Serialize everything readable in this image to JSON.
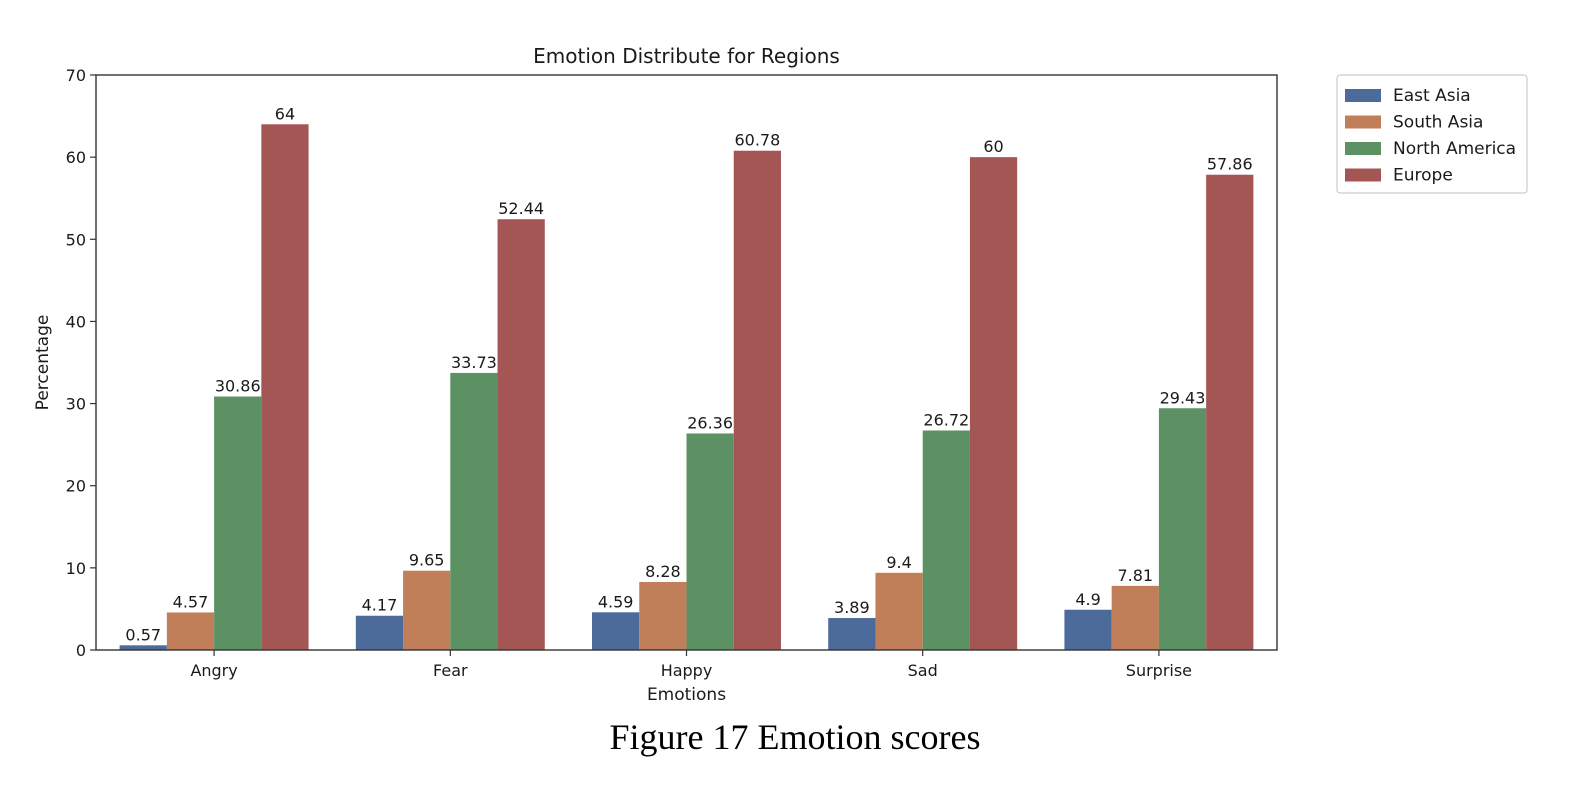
{
  "chart_data": {
    "type": "bar",
    "title": "Emotion Distribute for Regions",
    "xlabel": "Emotions",
    "ylabel": "Percentage",
    "categories": [
      "Angry",
      "Fear",
      "Happy",
      "Sad",
      "Surprise"
    ],
    "ylim": [
      0,
      70
    ],
    "yticks": [
      0,
      10,
      20,
      30,
      40,
      50,
      60,
      70
    ],
    "grid": false,
    "legend_position": "outside-top-right",
    "series": [
      {
        "name": "East Asia",
        "color": "#4c6a9a",
        "values": [
          0.57,
          4.17,
          4.59,
          3.89,
          4.9
        ],
        "labels": [
          "0.57",
          "4.17",
          "4.59",
          "3.89",
          "4.9"
        ]
      },
      {
        "name": "South Asia",
        "color": "#c07f58",
        "values": [
          4.57,
          9.65,
          8.28,
          9.4,
          7.81
        ],
        "labels": [
          "4.57",
          "9.65",
          "8.28",
          "9.4",
          "7.81"
        ]
      },
      {
        "name": "North America",
        "color": "#5b9163",
        "values": [
          30.86,
          33.73,
          26.36,
          26.72,
          29.43
        ],
        "labels": [
          "30.86",
          "33.73",
          "26.36",
          "26.72",
          "29.43"
        ]
      },
      {
        "name": "Europe",
        "color": "#a45654",
        "values": [
          64,
          52.44,
          60.78,
          60,
          57.86
        ],
        "labels": [
          "64",
          "52.44",
          "60.78",
          "60",
          "57.86"
        ]
      }
    ]
  },
  "caption": "Figure 17 Emotion scores"
}
